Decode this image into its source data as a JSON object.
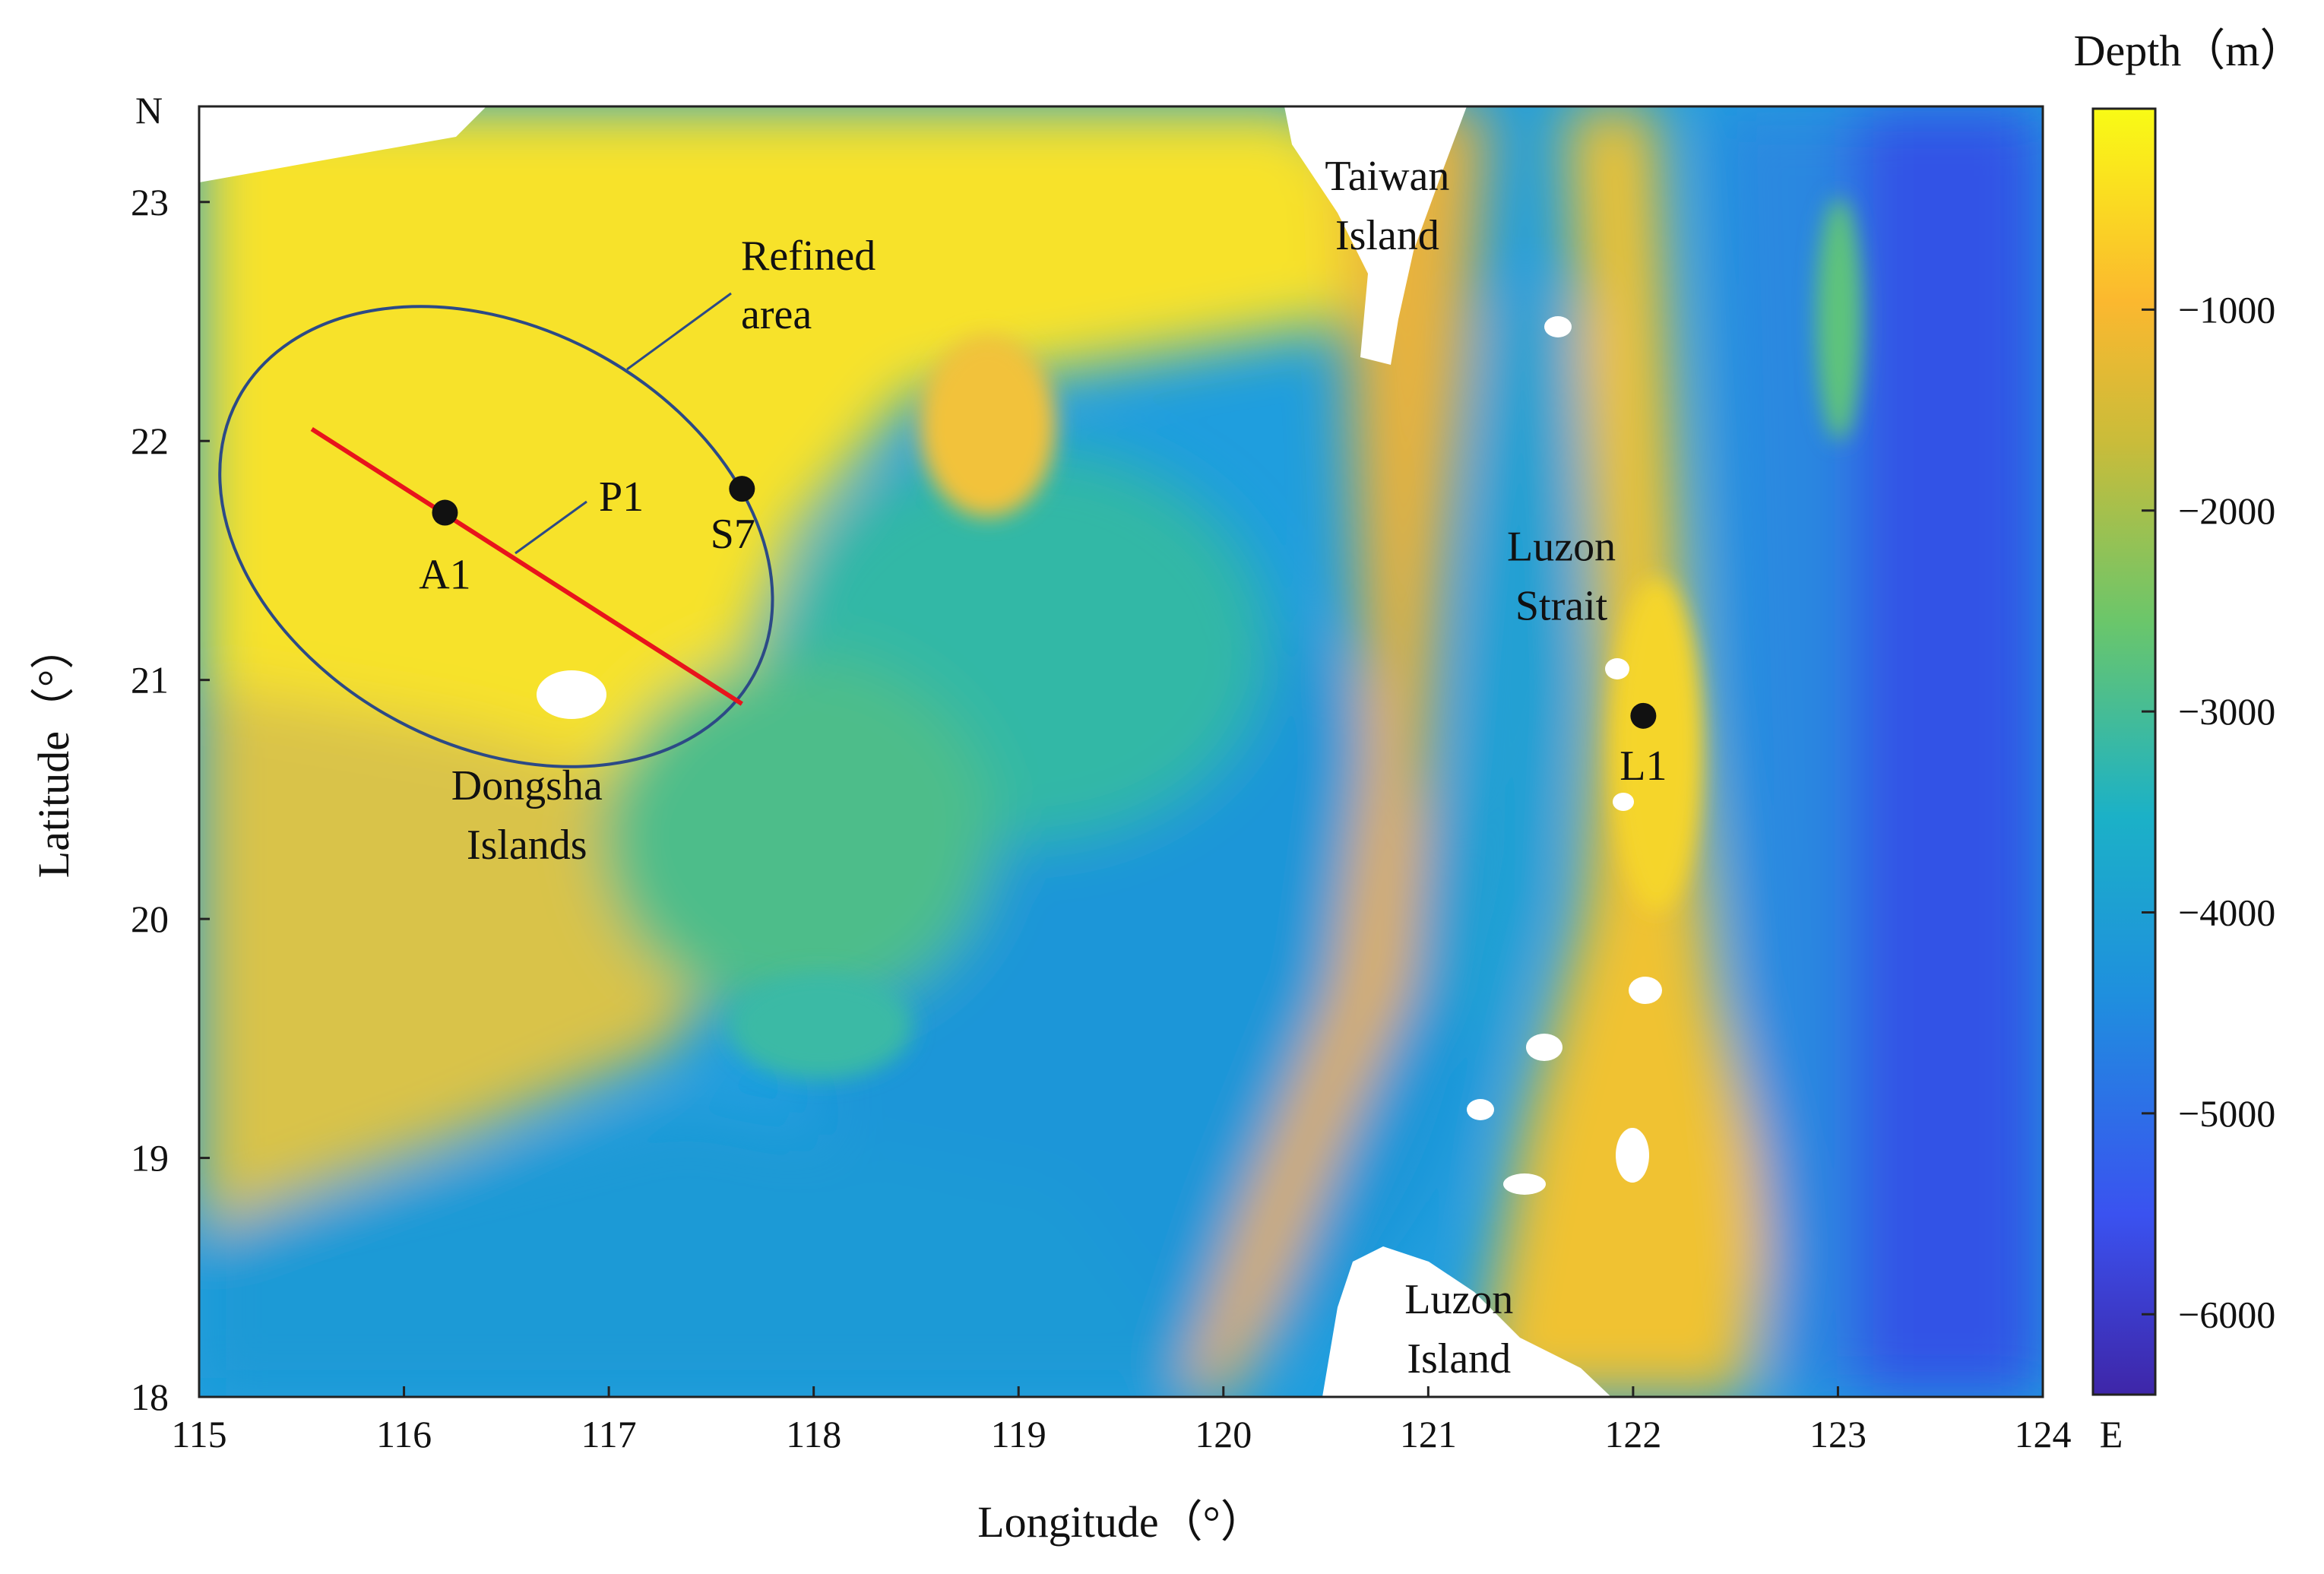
{
  "chart_data": {
    "type": "heatmap",
    "title": "",
    "xlabel": "Longitude（°）",
    "ylabel": "Latitude（°）",
    "xlim": [
      115,
      124
    ],
    "ylim": [
      18,
      23.4
    ],
    "x_ticks": [
      "115",
      "116",
      "117",
      "118",
      "119",
      "120",
      "121",
      "122",
      "123",
      "124"
    ],
    "y_ticks": [
      "18",
      "19",
      "20",
      "21",
      "22",
      "23"
    ],
    "north_label": "N",
    "east_label": "E",
    "colorbar": {
      "title": "Depth（m）",
      "range": [
        -6400,
        0
      ],
      "ticks": [
        {
          "value": -1000,
          "label": "−1000"
        },
        {
          "value": -2000,
          "label": "−2000"
        },
        {
          "value": -3000,
          "label": "−3000"
        },
        {
          "value": -4000,
          "label": "−4000"
        },
        {
          "value": -5000,
          "label": "−5000"
        },
        {
          "value": -6000,
          "label": "−6000"
        }
      ],
      "colors": [
        "#3e26a8",
        "#3a52f0",
        "#1f8fde",
        "#1bb1c7",
        "#6ac66b",
        "#c9bc3a",
        "#fbb82f",
        "#f9fb15"
      ]
    },
    "stations": [
      {
        "name": "A1",
        "lon": 116.2,
        "lat": 21.7
      },
      {
        "name": "S7",
        "lon": 117.65,
        "lat": 21.8
      },
      {
        "name": "L1",
        "lon": 122.05,
        "lat": 20.85
      }
    ],
    "section": {
      "name": "P1",
      "start": [
        115.55,
        22.05
      ],
      "end": [
        117.65,
        20.9
      ],
      "color": "#e8141c"
    },
    "refined_area": {
      "label_line1": "Refined",
      "label_line2": "area",
      "center": [
        116.45,
        21.6
      ],
      "stroke": "#2c4a86"
    },
    "places": [
      {
        "line1": "Taiwan",
        "line2": "Island",
        "lon": 120.8,
        "lat": 23.05
      },
      {
        "line1": "Luzon",
        "line2": "Strait",
        "lon": 121.65,
        "lat": 21.5
      },
      {
        "line1": "Dongsha",
        "line2": "Islands",
        "lon": 116.6,
        "lat": 20.5
      },
      {
        "line1": "Luzon",
        "line2": "Island",
        "lon": 121.15,
        "lat": 18.35
      }
    ]
  }
}
